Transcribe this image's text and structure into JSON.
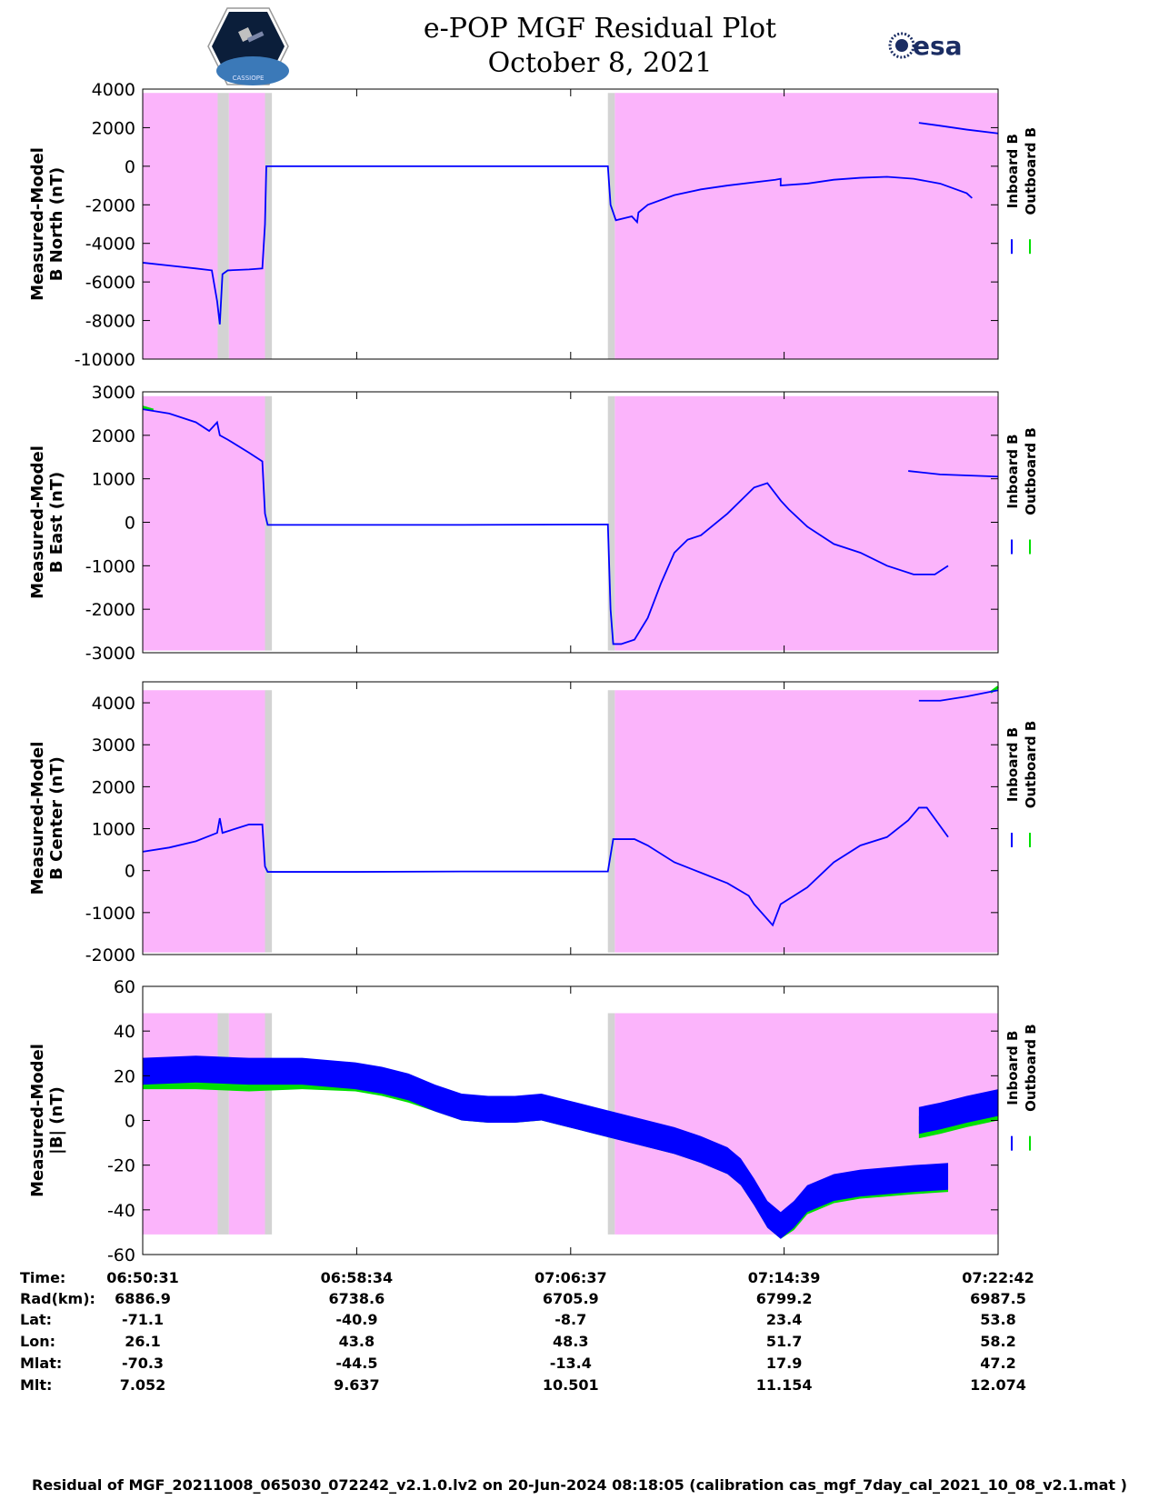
{
  "header": {
    "title_line1": "e-POP MGF Residual Plot",
    "title_line2": "October 8, 2021",
    "left_logo": "CASSIOPE",
    "right_logo": "esa"
  },
  "colors": {
    "band_pink": "#fbb4fb",
    "band_gray": "#d3d3d3",
    "inboard": "#0000ff",
    "outboard": "#00e000"
  },
  "chart_data": [
    {
      "type": "line",
      "ylabel_line1": "Measured-Model",
      "ylabel_line2": "B North (nT)",
      "ylim": [
        -10000,
        4000
      ],
      "yticks": [
        4000,
        2000,
        0,
        -2000,
        -4000,
        -6000,
        -8000,
        -10000
      ],
      "legend": [
        "Inboard B",
        "Outboard B"
      ],
      "pink_intervals_min": [
        [
          0,
          2.82
        ],
        [
          3.24,
          4.6
        ],
        [
          17.76,
          32.18
        ]
      ],
      "gray_intervals_min": [
        [
          2.82,
          3.24
        ],
        [
          4.6,
          4.86
        ],
        [
          17.5,
          17.76
        ]
      ],
      "band_ylim": [
        -10000,
        3800
      ],
      "inboard_segments": [
        {
          "t": [
            0,
            1,
            2,
            2.6,
            2.8,
            2.9,
            3.0,
            3.2,
            4.0,
            4.5
          ],
          "v": [
            -5000,
            -5150,
            -5300,
            -5400,
            -7000,
            -8200,
            -5600,
            -5400,
            -5350,
            -5300
          ]
        },
        {
          "t": [
            4.5,
            4.6,
            4.65,
            8,
            12,
            17.5
          ]
        }
      ],
      "series": [
        {
          "name": "Inboard B",
          "segments": [
            {
              "t": [
                0,
                1,
                2,
                2.6,
                2.8,
                2.9,
                3.0,
                3.2,
                4.0,
                4.5,
                4.6,
                4.65,
                8,
                12,
                17.5,
                17.6,
                17.8,
                18.4,
                18.6,
                18.65,
                19,
                20,
                21,
                22,
                23.8,
                24.0,
                24.0,
                25,
                26,
                27,
                28,
                29,
                30,
                31,
                31.2
              ],
              "v": [
                -5000,
                -5150,
                -5300,
                -5400,
                -7000,
                -8200,
                -5600,
                -5400,
                -5350,
                -5300,
                -3000,
                0,
                0,
                0,
                0,
                -2000,
                -2800,
                -2600,
                -2900,
                -2400,
                -2000,
                -1500,
                -1200,
                -1000,
                -700,
                -650,
                -1000,
                -900,
                -700,
                -600,
                -550,
                -650,
                -900,
                -1400,
                -1650
              ]
            },
            {
              "t": [
                29.2,
                30,
                31,
                32.18
              ],
              "v": [
                2250,
                2100,
                1900,
                1700
              ]
            }
          ]
        },
        {
          "name": "Outboard B",
          "segments": []
        }
      ]
    },
    {
      "type": "line",
      "ylabel_line1": "Measured-Model",
      "ylabel_line2": "B East (nT)",
      "ylim": [
        -3000,
        3000
      ],
      "yticks": [
        3000,
        2000,
        1000,
        0,
        -1000,
        -2000,
        -3000
      ],
      "legend": [
        "Inboard B",
        "Outboard B"
      ],
      "pink_intervals_min": [
        [
          0,
          4.6
        ],
        [
          17.76,
          32.18
        ]
      ],
      "gray_intervals_min": [
        [
          4.6,
          4.86
        ],
        [
          17.5,
          17.76
        ]
      ],
      "band_ylim": [
        -2950,
        2900
      ],
      "series": [
        {
          "name": "Inboard B",
          "segments": [
            {
              "t": [
                0,
                1,
                2,
                2.5,
                2.8,
                2.9,
                3.2,
                4.0,
                4.5,
                4.6,
                4.7,
                8,
                12,
                17.5,
                17.6,
                17.7,
                18,
                18.5,
                19,
                19.5,
                20,
                20.5,
                21,
                22,
                23,
                23.5,
                24,
                24.3,
                25,
                26,
                27,
                28,
                29,
                29.8,
                30.3
              ],
              "v": [
                2600,
                2500,
                2300,
                2100,
                2300,
                2000,
                1900,
                1600,
                1400,
                200,
                -60,
                -60,
                -60,
                -50,
                -2000,
                -2800,
                -2800,
                -2700,
                -2200,
                -1400,
                -700,
                -400,
                -300,
                200,
                800,
                900,
                500,
                300,
                -100,
                -500,
                -700,
                -1000,
                -1200,
                -1200,
                -1000
              ]
            },
            {
              "t": [
                28.8,
                30,
                32.18
              ],
              "v": [
                1180,
                1100,
                1050
              ]
            }
          ]
        },
        {
          "name": "Outboard B",
          "segments": [
            {
              "t": [
                0,
                0.4
              ],
              "v": [
                2650,
                2580
              ]
            }
          ]
        }
      ]
    },
    {
      "type": "line",
      "ylabel_line1": "Measured-Model",
      "ylabel_line2": "B Center (nT)",
      "ylim": [
        -2000,
        4500
      ],
      "yticks": [
        4000,
        3000,
        2000,
        1000,
        0,
        -1000,
        -2000
      ],
      "legend": [
        "Inboard B",
        "Outboard B"
      ],
      "pink_intervals_min": [
        [
          0,
          4.6
        ],
        [
          17.76,
          32.18
        ]
      ],
      "gray_intervals_min": [
        [
          4.6,
          4.86
        ],
        [
          17.5,
          17.76
        ]
      ],
      "band_ylim": [
        -1950,
        4300
      ],
      "series": [
        {
          "name": "Inboard B",
          "segments": [
            {
              "t": [
                0,
                1,
                2,
                2.8,
                2.9,
                3.0,
                3.5,
                4.0,
                4.5,
                4.6,
                4.7,
                8,
                12,
                17.5,
                17.7,
                18.5,
                19,
                20,
                21,
                22,
                22.8,
                23,
                23.7,
                24,
                24.5,
                25,
                26,
                27,
                28,
                28.8,
                29.2,
                29.5,
                30.3
              ],
              "v": [
                450,
                550,
                700,
                900,
                1250,
                900,
                1000,
                1100,
                1100,
                100,
                -30,
                -30,
                -20,
                -20,
                750,
                750,
                600,
                200,
                -50,
                -300,
                -600,
                -800,
                -1300,
                -800,
                -600,
                -400,
                200,
                600,
                800,
                1200,
                1500,
                1500,
                800
              ]
            },
            {
              "t": [
                29.2,
                30,
                31,
                32.18
              ],
              "v": [
                4050,
                4050,
                4150,
                4300
              ]
            }
          ]
        },
        {
          "name": "Outboard B",
          "segments": [
            {
              "t": [
                31.9,
                32.18
              ],
              "v": [
                4250,
                4380
              ]
            }
          ]
        }
      ]
    },
    {
      "type": "line",
      "ylabel_line1": "Measured-Model",
      "ylabel_line2": "|B| (nT)",
      "ylim": [
        -60,
        60
      ],
      "yticks": [
        60,
        40,
        20,
        0,
        -20,
        -40,
        -60
      ],
      "legend": [
        "Inboard B",
        "Outboard B"
      ],
      "pink_intervals_min": [
        [
          0,
          2.82
        ],
        [
          3.24,
          4.6
        ],
        [
          17.76,
          32.18
        ]
      ],
      "gray_intervals_min": [
        [
          2.82,
          3.24
        ],
        [
          4.6,
          4.86
        ],
        [
          17.5,
          17.76
        ]
      ],
      "band_ylim": [
        -51,
        48
      ],
      "series": [
        {
          "name": "Inboard B",
          "band_halfwidth": 6,
          "segments": [
            {
              "t": [
                0,
                2,
                4,
                6,
                8,
                9,
                10,
                11,
                12,
                13,
                14,
                15,
                16,
                17,
                18,
                19,
                20,
                21,
                22,
                22.5,
                23,
                23.5,
                24,
                24.5,
                25,
                26,
                27,
                28,
                29,
                30.3
              ],
              "v": [
                22,
                23,
                22,
                22,
                20,
                18,
                15,
                10,
                6,
                5,
                5,
                6,
                3,
                0,
                -3,
                -6,
                -9,
                -13,
                -18,
                -23,
                -32,
                -42,
                -47,
                -42,
                -35,
                -30,
                -28,
                -27,
                -26,
                -25
              ]
            },
            {
              "t": [
                29.2,
                30,
                31,
                32.18
              ],
              "v": [
                0,
                2,
                5,
                8
              ]
            }
          ]
        },
        {
          "name": "Outboard B",
          "band_halfwidth": 5,
          "offset": -3,
          "segments": [
            {
              "t": [
                0,
                2,
                4,
                6,
                8,
                9,
                10,
                11,
                12,
                13,
                14,
                15,
                16,
                17,
                18,
                19,
                20,
                21,
                22,
                22.5,
                23,
                23.5,
                24,
                24.5,
                25,
                26,
                27,
                28,
                29,
                30.3
              ],
              "v": [
                19,
                19,
                18,
                19,
                18,
                16,
                13,
                9,
                5,
                4,
                4,
                5,
                2,
                -1,
                -4,
                -7,
                -10,
                -14,
                -19,
                -24,
                -33,
                -43,
                -48,
                -44,
                -37,
                -32,
                -30,
                -29,
                -28,
                -27
              ]
            },
            {
              "t": [
                29.2,
                30,
                31,
                32.18
              ],
              "v": [
                -3,
                -1,
                2,
                5
              ]
            }
          ]
        }
      ]
    }
  ],
  "x_axis": {
    "xlim_min": [
      0,
      32.18
    ],
    "tick_minutes": [
      0,
      8.05,
      16.1,
      24.13,
      32.18
    ]
  },
  "table": {
    "labels": [
      "Time:",
      "Rad(km):",
      "Lat:",
      "Lon:",
      "Mlat:",
      "Mlt:"
    ],
    "columns": [
      [
        "06:50:31",
        "6886.9",
        "-71.1",
        "26.1",
        "-70.3",
        "7.052"
      ],
      [
        "06:58:34",
        "6738.6",
        "-40.9",
        "43.8",
        "-44.5",
        "9.637"
      ],
      [
        "07:06:37",
        "6705.9",
        "-8.7",
        "48.3",
        "-13.4",
        "10.501"
      ],
      [
        "07:14:39",
        "6799.2",
        "23.4",
        "51.7",
        "17.9",
        "11.154"
      ],
      [
        "07:22:42",
        "6987.5",
        "53.8",
        "58.2",
        "47.2",
        "12.074"
      ]
    ]
  },
  "footer": "Residual of MGF_20211008_065030_072242_v2.1.0.lv2 on 20-Jun-2024 08:18:05 (calibration cas_mgf_7day_cal_2021_10_08_v2.1.mat )"
}
